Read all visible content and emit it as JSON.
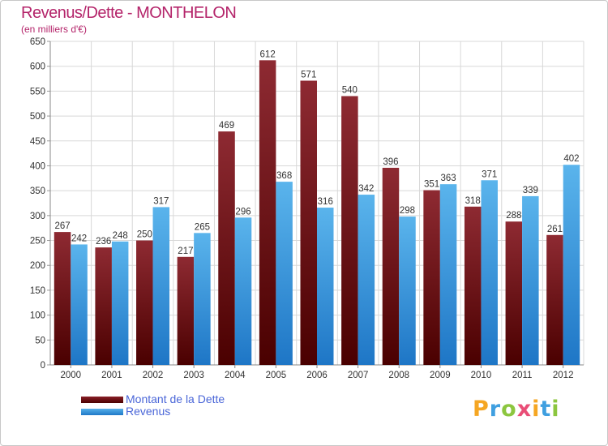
{
  "title": "Revenus/Dette - MONTHELON",
  "subtitle": "(en milliers d'€)",
  "legend": {
    "dette_label": "Montant de la Dette",
    "revenus_label": "Revenus"
  },
  "logo": {
    "letters": [
      "P",
      "r",
      "o",
      "x",
      "i",
      "t",
      "i"
    ]
  },
  "colors": {
    "title": "#b4246a",
    "dette": "#6e0f16",
    "revenus": "#3a9ae0",
    "legend_text": "#4a66d8"
  },
  "chart_data": {
    "type": "bar",
    "title": "Revenus/Dette - MONTHELON",
    "subtitle": "(en milliers d'€)",
    "categories": [
      "2000",
      "2001",
      "2002",
      "2003",
      "2004",
      "2005",
      "2006",
      "2007",
      "2008",
      "2009",
      "2010",
      "2011",
      "2012"
    ],
    "series": [
      {
        "name": "Montant de la Dette",
        "values": [
          267,
          236,
          250,
          217,
          469,
          612,
          571,
          540,
          396,
          351,
          318,
          288,
          261
        ]
      },
      {
        "name": "Revenus",
        "values": [
          242,
          248,
          317,
          265,
          296,
          368,
          316,
          342,
          298,
          363,
          371,
          339,
          402
        ]
      }
    ],
    "ylim": [
      0,
      650
    ],
    "yticks": [
      0,
      50,
      100,
      150,
      200,
      250,
      300,
      350,
      400,
      450,
      500,
      550,
      600,
      650
    ],
    "grid": true,
    "legend_position": "bottom-left"
  }
}
